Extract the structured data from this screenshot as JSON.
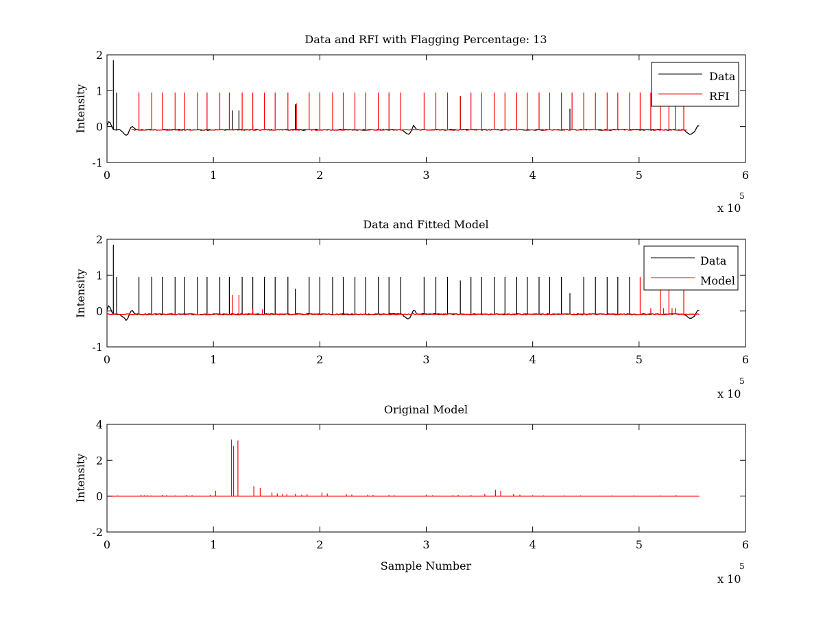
{
  "colors": {
    "data": "#000000",
    "rfi": "#ff0000",
    "model": "#ff0000",
    "background": "#ffffff"
  },
  "chart_data": [
    {
      "type": "line",
      "title": "Data and RFI with Flagging Percentage: 13",
      "xlabel": "",
      "ylabel": "Intensity",
      "xlim": [
        0,
        600000
      ],
      "ylim": [
        -1,
        2
      ],
      "x_ticks": [
        0,
        100000,
        200000,
        300000,
        400000,
        500000,
        600000
      ],
      "x_tick_labels": [
        "0",
        "1",
        "2",
        "3",
        "4",
        "5",
        "6"
      ],
      "y_ticks": [
        -1,
        0,
        1,
        2
      ],
      "y_tick_labels": [
        "-1",
        "0",
        "1",
        "2"
      ],
      "x_exponent_label": "x 10",
      "x_exponent_power": "5",
      "grid": false,
      "legend": {
        "placement": "top-right",
        "entries": [
          "Data",
          "RFI"
        ]
      },
      "series": [
        {
          "name": "Data",
          "color": "#000000",
          "baseline": -0.09,
          "x_end": 557000,
          "spikes": [
            [
              6000,
              1.85
            ],
            [
              9000,
              0.95
            ],
            [
              118000,
              0.45
            ],
            [
              124000,
              0.45
            ],
            [
              137000,
              0.05
            ],
            [
              177000,
              0.62
            ],
            [
              332000,
              0.85
            ],
            [
              435000,
              0.5
            ]
          ],
          "dips": [
            [
              18000,
              -0.25
            ],
            [
              283000,
              -0.23
            ],
            [
              548000,
              -0.22
            ]
          ],
          "bumps": [
            [
              2000,
              0.18
            ],
            [
              23000,
              0.05
            ],
            [
              288000,
              0.05
            ],
            [
              556000,
              0.05
            ]
          ]
        },
        {
          "name": "RFI",
          "color": "#ff0000",
          "baseline": -0.09,
          "x_range": [
            23000,
            545000
          ],
          "spikes": [
            [
              30000,
              0.95
            ],
            [
              42000,
              0.95
            ],
            [
              52000,
              0.95
            ],
            [
              64000,
              0.95
            ],
            [
              73000,
              0.95
            ],
            [
              85000,
              0.95
            ],
            [
              94000,
              0.95
            ],
            [
              106000,
              0.95
            ],
            [
              115000,
              0.95
            ],
            [
              127000,
              0.95
            ],
            [
              137000,
              0.95
            ],
            [
              148000,
              0.95
            ],
            [
              158000,
              0.95
            ],
            [
              170000,
              0.95
            ],
            [
              178000,
              0.65
            ],
            [
              190000,
              0.95
            ],
            [
              200000,
              0.95
            ],
            [
              212000,
              0.95
            ],
            [
              222000,
              0.95
            ],
            [
              233000,
              0.95
            ],
            [
              243000,
              0.95
            ],
            [
              255000,
              0.95
            ],
            [
              265000,
              0.95
            ],
            [
              276000,
              0.95
            ],
            [
              298000,
              0.95
            ],
            [
              309000,
              0.95
            ],
            [
              320000,
              0.95
            ],
            [
              332000,
              0.85
            ],
            [
              342000,
              0.95
            ],
            [
              352000,
              0.95
            ],
            [
              364000,
              0.95
            ],
            [
              374000,
              0.95
            ],
            [
              385000,
              0.95
            ],
            [
              395000,
              0.95
            ],
            [
              406000,
              0.95
            ],
            [
              416000,
              0.95
            ],
            [
              427000,
              0.95
            ],
            [
              437000,
              0.95
            ],
            [
              448000,
              0.95
            ],
            [
              459000,
              0.95
            ],
            [
              470000,
              0.95
            ],
            [
              480000,
              0.95
            ],
            [
              491000,
              0.95
            ],
            [
              501000,
              0.95
            ],
            [
              511000,
              0.95
            ],
            [
              520000,
              0.95
            ],
            [
              528000,
              0.95
            ],
            [
              534000,
              0.95
            ],
            [
              542000,
              0.95
            ]
          ]
        }
      ]
    },
    {
      "type": "line",
      "title": "Data and Fitted Model",
      "xlabel": "",
      "ylabel": "Intensity",
      "xlim": [
        0,
        600000
      ],
      "ylim": [
        -1,
        2
      ],
      "x_ticks": [
        0,
        100000,
        200000,
        300000,
        400000,
        500000,
        600000
      ],
      "x_tick_labels": [
        "0",
        "1",
        "2",
        "3",
        "4",
        "5",
        "6"
      ],
      "y_ticks": [
        -1,
        0,
        1,
        2
      ],
      "y_tick_labels": [
        "-1",
        "0",
        "1",
        "2"
      ],
      "x_exponent_label": "x 10",
      "x_exponent_power": "5",
      "grid": false,
      "legend": {
        "placement": "top-right",
        "entries": [
          "Data",
          "Model"
        ]
      },
      "series": [
        {
          "name": "Data",
          "color": "#000000",
          "baseline": -0.09,
          "x_end": 557000,
          "spikes": [
            [
              6000,
              1.85
            ],
            [
              9000,
              0.95
            ],
            [
              30000,
              0.95
            ],
            [
              42000,
              0.95
            ],
            [
              52000,
              0.95
            ],
            [
              64000,
              0.95
            ],
            [
              73000,
              0.95
            ],
            [
              85000,
              0.95
            ],
            [
              94000,
              0.95
            ],
            [
              106000,
              0.95
            ],
            [
              115000,
              0.95
            ],
            [
              127000,
              0.95
            ],
            [
              137000,
              0.95
            ],
            [
              148000,
              0.95
            ],
            [
              158000,
              0.95
            ],
            [
              170000,
              0.95
            ],
            [
              177000,
              0.62
            ],
            [
              190000,
              0.95
            ],
            [
              200000,
              0.95
            ],
            [
              212000,
              0.95
            ],
            [
              222000,
              0.95
            ],
            [
              233000,
              0.95
            ],
            [
              243000,
              0.95
            ],
            [
              255000,
              0.95
            ],
            [
              265000,
              0.95
            ],
            [
              276000,
              0.95
            ],
            [
              298000,
              0.95
            ],
            [
              309000,
              0.95
            ],
            [
              320000,
              0.95
            ],
            [
              332000,
              0.85
            ],
            [
              342000,
              0.95
            ],
            [
              352000,
              0.95
            ],
            [
              364000,
              0.95
            ],
            [
              374000,
              0.95
            ],
            [
              385000,
              0.95
            ],
            [
              395000,
              0.95
            ],
            [
              406000,
              0.95
            ],
            [
              416000,
              0.95
            ],
            [
              427000,
              0.95
            ],
            [
              435000,
              0.5
            ],
            [
              448000,
              0.95
            ],
            [
              459000,
              0.95
            ],
            [
              470000,
              0.95
            ],
            [
              480000,
              0.95
            ],
            [
              491000,
              0.95
            ]
          ],
          "dips": [
            [
              18000,
              -0.25
            ],
            [
              283000,
              -0.23
            ],
            [
              548000,
              -0.22
            ]
          ],
          "bumps": [
            [
              2000,
              0.18
            ],
            [
              23000,
              0.05
            ],
            [
              288000,
              0.05
            ],
            [
              556000,
              0.05
            ]
          ]
        },
        {
          "name": "Model",
          "color": "#ff0000",
          "baseline": -0.09,
          "x_range": [
            0,
            557000
          ],
          "spikes": [
            [
              118000,
              0.45
            ],
            [
              124000,
              0.45
            ],
            [
              137000,
              0.05
            ],
            [
              146000,
              0.05
            ],
            [
              501000,
              0.95
            ],
            [
              511000,
              0.08
            ],
            [
              520000,
              0.95
            ],
            [
              523000,
              0.08
            ],
            [
              528000,
              0.95
            ],
            [
              531000,
              0.08
            ],
            [
              534000,
              0.08
            ],
            [
              542000,
              0.95
            ]
          ]
        }
      ]
    },
    {
      "type": "line",
      "title": "Original Model",
      "xlabel": "Sample Number",
      "ylabel": "Intensity",
      "xlim": [
        0,
        600000
      ],
      "ylim": [
        -2,
        4
      ],
      "x_ticks": [
        0,
        100000,
        200000,
        300000,
        400000,
        500000,
        600000
      ],
      "x_tick_labels": [
        "0",
        "1",
        "2",
        "3",
        "4",
        "5",
        "6"
      ],
      "y_ticks": [
        -2,
        0,
        2,
        4
      ],
      "y_tick_labels": [
        "-2",
        "0",
        "2",
        "4"
      ],
      "x_exponent_label": "x 10",
      "x_exponent_power": "5",
      "grid": false,
      "series": [
        {
          "color": "#ff0000",
          "baseline": 0,
          "x_range": [
            0,
            557000
          ],
          "spikes": [
            [
              10000,
              0.04
            ],
            [
              32000,
              0.06
            ],
            [
              35000,
              0.05
            ],
            [
              38000,
              0.05
            ],
            [
              42000,
              0.04
            ],
            [
              52000,
              0.06
            ],
            [
              56000,
              0.05
            ],
            [
              64000,
              0.04
            ],
            [
              75000,
              0.06
            ],
            [
              80000,
              0.05
            ],
            [
              97000,
              0.06
            ],
            [
              102000,
              0.3
            ],
            [
              117000,
              3.15
            ],
            [
              119000,
              2.8
            ],
            [
              123000,
              3.1
            ],
            [
              138000,
              0.55
            ],
            [
              144000,
              0.45
            ],
            [
              155000,
              0.2
            ],
            [
              160000,
              0.15
            ],
            [
              165000,
              0.12
            ],
            [
              169000,
              0.1
            ],
            [
              177000,
              0.12
            ],
            [
              183000,
              0.08
            ],
            [
              188000,
              0.1
            ],
            [
              202000,
              0.2
            ],
            [
              207000,
              0.15
            ],
            [
              225000,
              0.1
            ],
            [
              230000,
              0.08
            ],
            [
              245000,
              0.08
            ],
            [
              250000,
              0.06
            ],
            [
              265000,
              0.06
            ],
            [
              270000,
              0.05
            ],
            [
              300000,
              0.08
            ],
            [
              306000,
              0.05
            ],
            [
              325000,
              0.05
            ],
            [
              330000,
              0.06
            ],
            [
              342000,
              0.06
            ],
            [
              355000,
              0.1
            ],
            [
              365000,
              0.35
            ],
            [
              370000,
              0.3
            ],
            [
              382000,
              0.1
            ],
            [
              388000,
              0.08
            ],
            [
              400000,
              0.05
            ],
            [
              410000,
              0.04
            ],
            [
              430000,
              0.04
            ],
            [
              445000,
              0.04
            ],
            [
              475000,
              0.04
            ],
            [
              495000,
              0.04
            ],
            [
              520000,
              0.04
            ],
            [
              535000,
              0.05
            ]
          ]
        }
      ]
    }
  ]
}
